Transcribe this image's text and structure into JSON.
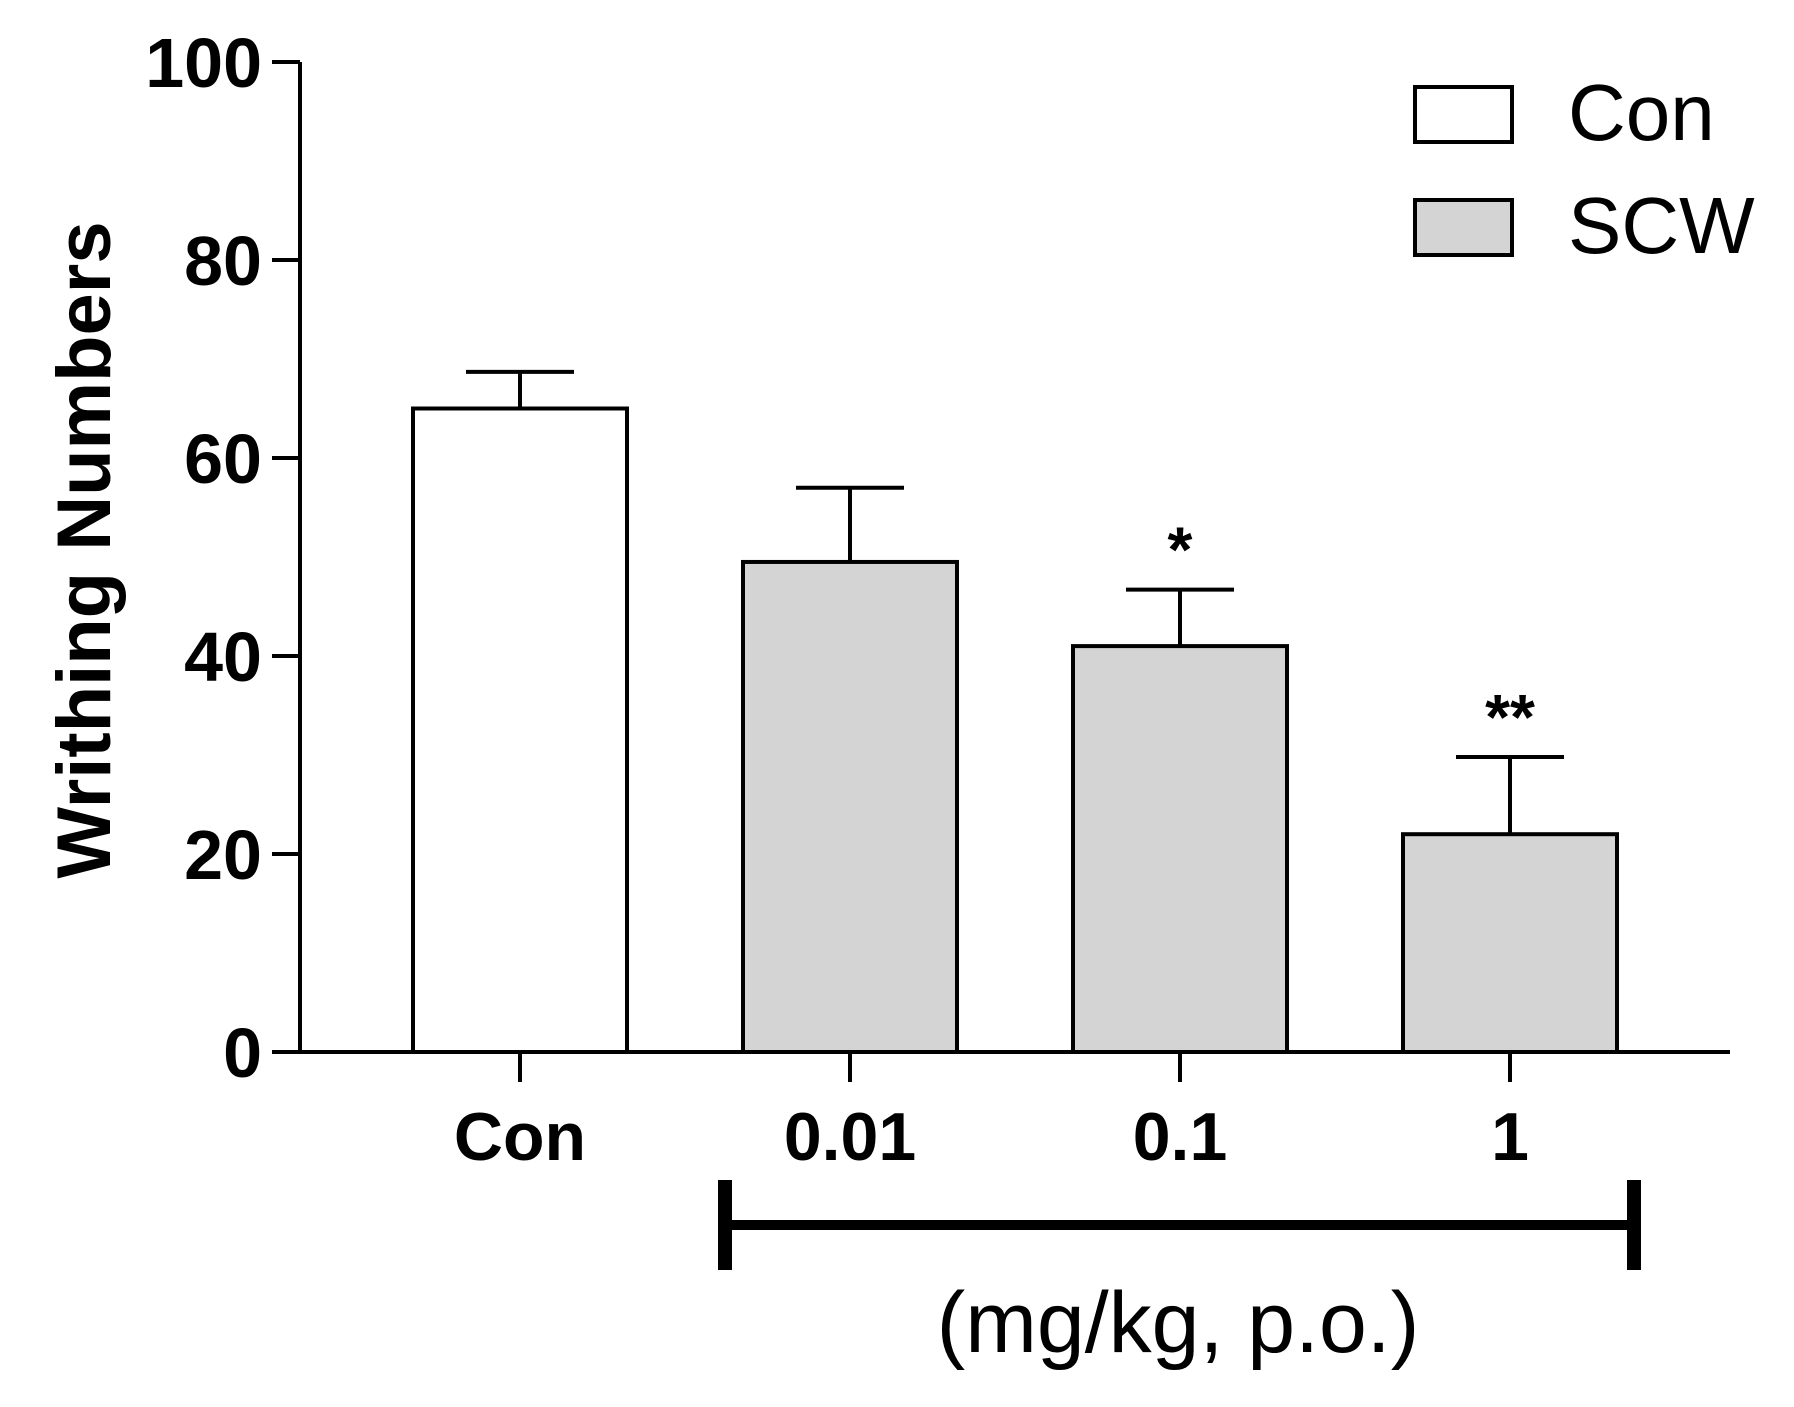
{
  "chart_data": {
    "type": "bar",
    "title": "",
    "xlabel": "",
    "ylabel": "Writhing Numbers",
    "ylim": [
      0,
      100
    ],
    "yticks": [
      "0",
      "20",
      "40",
      "60",
      "80",
      "100"
    ],
    "categories": [
      "Con",
      "0.01",
      "0.1",
      "1"
    ],
    "values": [
      65,
      49.5,
      41,
      22
    ],
    "errors": [
      3.7,
      7.5,
      5.7,
      7.8
    ],
    "groups": [
      "Con",
      "SCW",
      "SCW",
      "SCW"
    ],
    "significance": [
      "",
      "",
      "*",
      "**"
    ],
    "legend": [
      {
        "label": "Con",
        "color": "#ffffff"
      },
      {
        "label": "SCW",
        "color": "#d4d4d4"
      }
    ],
    "legend_position": "top-right",
    "dose_unit": "(mg/kg, p.o.)"
  }
}
